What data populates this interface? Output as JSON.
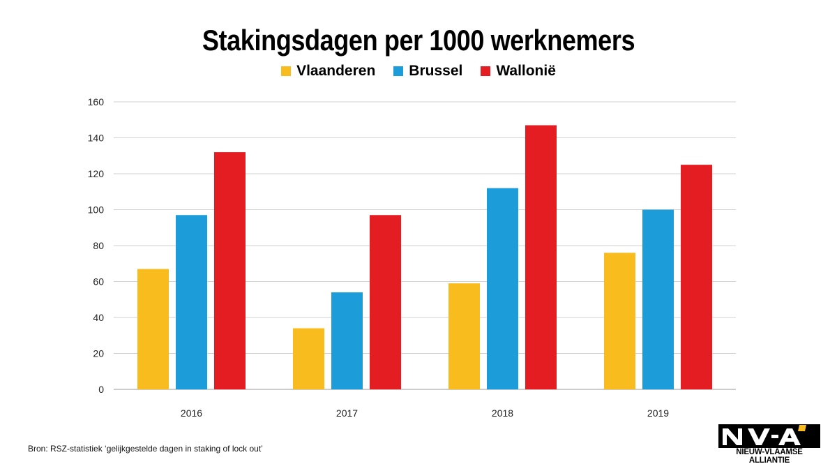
{
  "chart_data": {
    "type": "bar",
    "title": "Stakingsdagen per 1000 werknemers",
    "categories": [
      "2016",
      "2017",
      "2018",
      "2019"
    ],
    "series": [
      {
        "name": "Vlaanderen",
        "color": "#F9BC1E",
        "values": [
          67,
          34,
          59,
          76
        ]
      },
      {
        "name": "Brussel",
        "color": "#1C9CD8",
        "values": [
          97,
          54,
          112,
          100
        ]
      },
      {
        "name": "Wallonië",
        "color": "#E41D22",
        "values": [
          132,
          97,
          147,
          125
        ]
      }
    ],
    "ylim": [
      0,
      160
    ],
    "yticks": [
      0,
      20,
      40,
      60,
      80,
      100,
      120,
      140,
      160
    ],
    "grid": true,
    "legend_position": "top-center"
  },
  "source_text": "Bron: RSZ-statistiek ‘gelijkgestelde dagen in staking of lock out’",
  "logo": {
    "text": "N-VA",
    "subtitle": "NIEUW-VLAAMSE ALLIANTIE",
    "accent_color": "#F9BC1E"
  }
}
